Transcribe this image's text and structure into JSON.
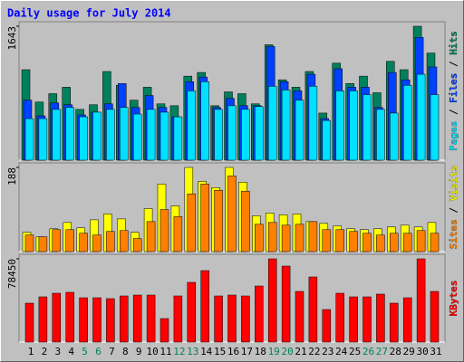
{
  "title": "Daily usage for July 2014",
  "legend_separator": " / ",
  "chart_data": [
    {
      "type": "bar",
      "ylim": [
        0,
        1643
      ],
      "yticks": [
        1643
      ],
      "series": [
        {
          "name": "Hits",
          "color": "#00805c",
          "values": [
            1110,
            714,
            816,
            895,
            623,
            680,
            1088,
            918,
            736,
            895,
            691,
            668,
            1031,
            1076,
            668,
            838,
            816,
            691,
            1416,
            986,
            895,
            1088,
            578,
            1190,
            940,
            1031,
            827,
            1212,
            1110,
            1643,
            1314
          ]
        },
        {
          "name": "Files",
          "color": "#0040ff",
          "values": [
            736,
            544,
            702,
            680,
            555,
            589,
            691,
            940,
            646,
            793,
            646,
            532,
            963,
            1020,
            646,
            759,
            668,
            668,
            1394,
            963,
            850,
            1054,
            510,
            1122,
            895,
            895,
            646,
            1076,
            986,
            1507,
            1144
          ]
        },
        {
          "name": "Pages",
          "color": "#00e0ff",
          "values": [
            510,
            510,
            623,
            646,
            532,
            589,
            623,
            646,
            566,
            623,
            589,
            532,
            850,
            963,
            623,
            668,
            623,
            657,
            906,
            861,
            736,
            906,
            487,
            850,
            850,
            804,
            623,
            578,
            918,
            1054,
            804
          ]
        }
      ]
    },
    {
      "type": "bar",
      "ylim": [
        0,
        188
      ],
      "yticks": [
        188
      ],
      "series": [
        {
          "name": "Visits",
          "color": "#ffff00",
          "values": [
            43,
            33,
            51,
            65,
            53,
            71,
            84,
            73,
            43,
            96,
            151,
            102,
            188,
            157,
            143,
            188,
            155,
            80,
            86,
            82,
            84,
            67,
            63,
            57,
            51,
            49,
            51,
            55,
            59,
            55,
            65
          ]
        },
        {
          "name": "Sites",
          "color": "#ff8000",
          "values": [
            37,
            33,
            49,
            49,
            41,
            37,
            45,
            47,
            29,
            67,
            94,
            78,
            129,
            151,
            137,
            169,
            135,
            61,
            65,
            59,
            61,
            67,
            49,
            49,
            45,
            41,
            37,
            41,
            41,
            47,
            41
          ]
        }
      ]
    },
    {
      "type": "bar",
      "ylim": [
        0,
        78450
      ],
      "yticks": [
        78450
      ],
      "categories": [
        "1",
        "2",
        "3",
        "4",
        "5",
        "6",
        "7",
        "8",
        "9",
        "10",
        "11",
        "12",
        "13",
        "14",
        "15",
        "16",
        "17",
        "18",
        "19",
        "20",
        "21",
        "22",
        "23",
        "24",
        "25",
        "26",
        "27",
        "28",
        "29",
        "30",
        "31"
      ],
      "highlight_categories": [
        "5",
        "6",
        "12",
        "13",
        "19",
        "20",
        "26",
        "27"
      ],
      "highlight_color": "#008060",
      "series": [
        {
          "name": "KBytes",
          "color": "#ff0000",
          "values": [
            36666,
            42635,
            46046,
            46899,
            41782,
            41782,
            40930,
            43488,
            44340,
            44340,
            22170,
            43488,
            56278,
            67363,
            43488,
            44340,
            43488,
            52867,
            78450,
            71627,
            47751,
            61394,
            30697,
            46046,
            42635,
            42635,
            45193,
            36666,
            41782,
            78450,
            47751
          ]
        }
      ]
    }
  ]
}
